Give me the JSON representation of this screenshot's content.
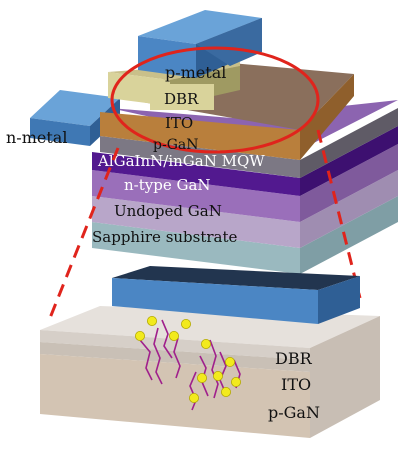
{
  "top_stack": {
    "labels": {
      "p_metal": "p-metal",
      "dbr": "DBR",
      "ito": "ITO",
      "p_gan": "p-GaN",
      "n_metal": "n-metal",
      "mqw": "AlGaInN/inGaN MQW",
      "n_type_gan": "n-type GaN",
      "undoped_gan": "Undoped GaN",
      "sapphire": "Sapphire substrate"
    }
  },
  "zoom_detail": {
    "labels": {
      "dbr": "DBR",
      "ito": "ITO",
      "p_gan": "p-GaN"
    }
  },
  "colors": {
    "metal_blue": "#4b86c4",
    "dbr_beige": "#d9d39b",
    "ito_orange": "#b97f3c",
    "p_gan_gray": "#7c7884",
    "mqw_purple": "#52198f",
    "n_gan_violet": "#9a6fba",
    "undoped_lavender": "#b8a6c9",
    "sapphire_teal": "#9ab9bf",
    "highlight_ellipse": "#e0241c",
    "zoom_lines": "#e0241c",
    "defect_dots": "#f2ea1d",
    "defect_lines": "#a0208c"
  }
}
